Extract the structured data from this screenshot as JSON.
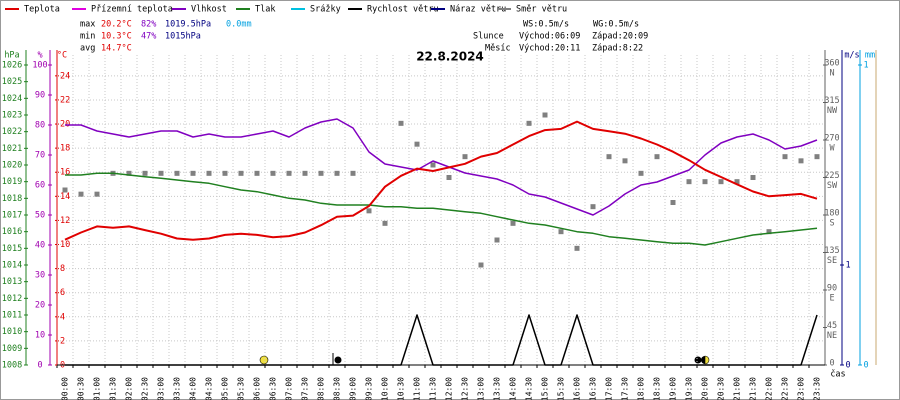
{
  "chart_data": {
    "type": "line",
    "title": "22.8.2024",
    "xlabel": "čas",
    "categories": [
      "00:00",
      "00:30",
      "01:00",
      "01:30",
      "02:00",
      "02:30",
      "03:00",
      "03:30",
      "04:00",
      "04:30",
      "05:00",
      "05:30",
      "06:00",
      "06:30",
      "07:00",
      "07:30",
      "08:00",
      "08:30",
      "09:00",
      "09:30",
      "10:00",
      "10:30",
      "11:00",
      "11:30",
      "12:00",
      "12:30",
      "13:00",
      "13:30",
      "14:00",
      "14:30",
      "15:00",
      "15:30",
      "16:00",
      "16:30",
      "17:00",
      "17:30",
      "18:00",
      "18:30",
      "19:00",
      "19:30",
      "20:00",
      "20:30",
      "21:00",
      "21:30",
      "22:00",
      "22:30",
      "23:00",
      "23:30"
    ],
    "grid": true,
    "axes": [
      {
        "label": "hPa",
        "color": "#208020",
        "lim": [
          1008,
          1026
        ],
        "ticks": [
          1008,
          1009,
          1010,
          1011,
          1012,
          1013,
          1014,
          1015,
          1016,
          1017,
          1018,
          1019,
          1020,
          1021,
          1022,
          1023,
          1024,
          1025,
          1026
        ]
      },
      {
        "label": "%",
        "color": "#a000b0",
        "lim": [
          0,
          100
        ],
        "ticks": [
          0,
          10,
          20,
          30,
          40,
          50,
          60,
          70,
          80,
          90,
          100
        ]
      },
      {
        "label": "°C",
        "color": "#e00000",
        "lim": [
          0,
          24.9
        ],
        "ticks": [
          0,
          2,
          4,
          6,
          8,
          10,
          12,
          14,
          16,
          18,
          20,
          22,
          24
        ],
        "grid": true
      },
      {
        "color": "#606060",
        "lim": [
          0,
          360
        ],
        "ticks": [
          0,
          45,
          90,
          135,
          180,
          225,
          270,
          315,
          360
        ],
        "tick_names": [
          null,
          "NE",
          "E",
          "SE",
          "S",
          "SW",
          "W",
          "NW",
          "N"
        ]
      },
      {
        "label": "m/s",
        "color": "#000080",
        "lim": [
          0,
          3
        ],
        "ticks": [
          0,
          1
        ]
      },
      {
        "label": "mm",
        "color": "#00a0e0",
        "lim": [
          0,
          1
        ],
        "ticks": [
          0,
          1
        ]
      }
    ],
    "series": [
      {
        "name": "Teplota",
        "color": "#e00000",
        "axis": 2,
        "values": [
          10.4,
          11.0,
          11.5,
          11.4,
          11.5,
          11.2,
          10.9,
          10.5,
          10.4,
          10.5,
          10.8,
          10.9,
          10.8,
          10.6,
          10.7,
          11.0,
          11.6,
          12.3,
          12.4,
          13.2,
          14.8,
          15.7,
          16.3,
          16.1,
          16.4,
          16.7,
          17.3,
          17.6,
          18.3,
          19.0,
          19.5,
          19.6,
          20.2,
          19.6,
          19.4,
          19.2,
          18.8,
          18.3,
          17.7,
          17.0,
          16.2,
          15.6,
          15.0,
          14.4,
          14.0,
          14.1,
          14.2,
          13.8
        ]
      },
      {
        "name": "Přízemní teplota",
        "color": "#e000e0"
      },
      {
        "name": "Vlhkost",
        "color": "#8000c0",
        "axis": 1,
        "values": [
          80,
          80,
          78,
          77,
          76,
          77,
          78,
          78,
          76,
          77,
          76,
          76,
          77,
          78,
          76,
          79,
          81,
          82,
          79,
          71,
          67,
          66,
          65,
          68,
          66,
          64,
          63,
          62,
          60,
          57,
          56,
          54,
          52,
          50,
          53,
          57,
          60,
          61,
          63,
          65,
          70,
          74,
          76,
          77,
          75,
          72,
          73,
          75
        ]
      },
      {
        "name": "Tlak",
        "color": "#208020",
        "axis": 0,
        "values": [
          1019.4,
          1019.4,
          1019.5,
          1019.5,
          1019.4,
          1019.3,
          1019.2,
          1019.1,
          1019.0,
          1018.9,
          1018.7,
          1018.5,
          1018.4,
          1018.2,
          1018.0,
          1017.9,
          1017.7,
          1017.6,
          1017.6,
          1017.6,
          1017.5,
          1017.5,
          1017.4,
          1017.4,
          1017.3,
          1017.2,
          1017.1,
          1016.9,
          1016.7,
          1016.5,
          1016.4,
          1016.2,
          1016.0,
          1015.9,
          1015.7,
          1015.6,
          1015.5,
          1015.4,
          1015.3,
          1015.3,
          1015.2,
          1015.4,
          1015.6,
          1015.8,
          1015.9,
          1016.0,
          1016.1,
          1016.2
        ]
      },
      {
        "name": "Srážky",
        "color": "#00c0e0"
      },
      {
        "name": "Rychlost větru",
        "color": "#000000",
        "axis": 4,
        "values": [
          0,
          0,
          0,
          0,
          0,
          0,
          0,
          0,
          0,
          0,
          0,
          0,
          0,
          0,
          0,
          0,
          0,
          0,
          0,
          0,
          0,
          0,
          0.5,
          0,
          0,
          0,
          0,
          0,
          0,
          0.5,
          0,
          0,
          0.5,
          0,
          0,
          0,
          0,
          0,
          0,
          0,
          0,
          0,
          0,
          0,
          0,
          0,
          0,
          0.5
        ]
      },
      {
        "name": "Náraz větru",
        "color": "#000080"
      },
      {
        "name": "Směr větru",
        "color": "#808080",
        "axis": 3,
        "style": "points",
        "values": [
          210,
          205,
          205,
          230,
          230,
          230,
          230,
          230,
          230,
          230,
          230,
          230,
          230,
          230,
          230,
          230,
          230,
          230,
          230,
          185,
          170,
          290,
          265,
          240,
          225,
          250,
          120,
          150,
          170,
          290,
          300,
          160,
          140,
          190,
          250,
          245,
          230,
          250,
          195,
          220,
          220,
          220,
          220,
          225,
          160,
          250,
          245,
          250
        ]
      }
    ],
    "stats": [
      [
        "max",
        "20.2°C",
        "82%",
        "1019.5hPa",
        "0.0mm"
      ],
      [
        "min",
        "10.3°C",
        "47%",
        "1015hPa"
      ],
      [
        "avg",
        "14.7°C"
      ]
    ],
    "stats_colors": [
      "#000000",
      "#e00000",
      "#8000c0",
      "#000080",
      "#00a0e0"
    ],
    "info": [
      [
        "WS:0.5m/s",
        "WG:0.5m/s"
      ],
      [
        "Slunce",
        "Východ:06:09",
        "Západ:20:09"
      ],
      [
        "Měsíc",
        "Východ:20:11",
        "Západ:8:22"
      ]
    ]
  }
}
